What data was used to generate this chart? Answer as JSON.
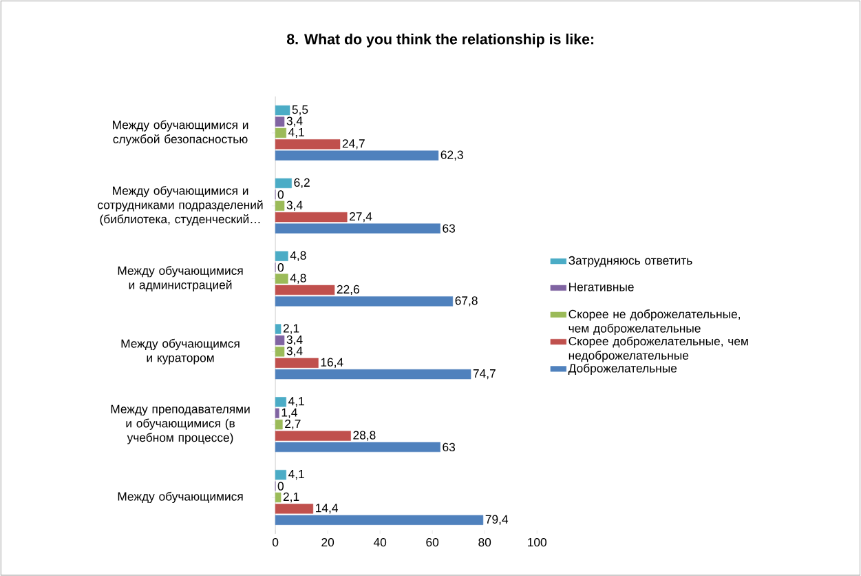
{
  "chart_data": {
    "type": "bar",
    "orientation": "horizontal",
    "title": "8. What do you think the relationship is like:",
    "categories": [
      "Между обучающимися и службой безопасностью",
      "Между обучающимися и сотрудниками подразделений (библиотека, студенческий…",
      "Между обучающимися и администрацией",
      "Между обучающимся и куратором",
      "Между преподавателями и обучающимися (в учебном процессе)",
      "Между обучающимися"
    ],
    "series": [
      {
        "name": "Доброжелательные",
        "color": "#4f81bd",
        "values": [
          62.3,
          63,
          67.8,
          74.7,
          63,
          79.4
        ],
        "value_labels": [
          "62,3",
          "63",
          "67,8",
          "74,7",
          "63",
          "79,4"
        ]
      },
      {
        "name": "Скорее доброжелательные, чем недоброжелательные",
        "color": "#c0504d",
        "values": [
          24.7,
          27.4,
          22.6,
          16.4,
          28.8,
          14.4
        ],
        "value_labels": [
          "24,7",
          "27,4",
          "22,6",
          "16,4",
          "28,8",
          "14,4"
        ]
      },
      {
        "name": "Скорее не доброжелательные, чем доброжелательные",
        "color": "#9bbb59",
        "values": [
          4.1,
          3.4,
          4.8,
          3.4,
          2.7,
          2.1
        ],
        "value_labels": [
          "4,1",
          "3,4",
          "4,8",
          "3,4",
          "2,7",
          "2,1"
        ]
      },
      {
        "name": "Негативные",
        "color": "#8064a2",
        "values": [
          3.4,
          0,
          0,
          3.4,
          1.4,
          0
        ],
        "value_labels": [
          "3,4",
          "0",
          "0",
          "3,4",
          "1,4",
          "0"
        ]
      },
      {
        "name": "Затрудняюсь ответить",
        "color": "#4bacc6",
        "values": [
          5.5,
          6.2,
          4.8,
          2.1,
          4.1,
          4.1
        ],
        "value_labels": [
          "5,5",
          "6,2",
          "4,8",
          "2,1",
          "4,1",
          "4,1"
        ]
      }
    ],
    "xlim": [
      0,
      100
    ],
    "xticks": [
      0,
      20,
      40,
      60,
      80,
      100
    ],
    "legend": "right"
  }
}
